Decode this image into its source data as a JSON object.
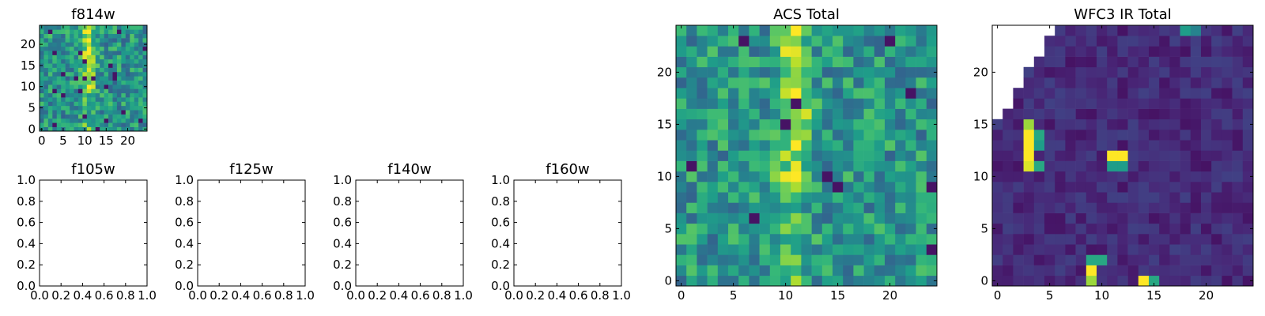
{
  "chart_data": [
    {
      "type": "heatmap",
      "title": "f814w",
      "grid_size": [
        25,
        25
      ],
      "xticks": [
        "0",
        "5",
        "10",
        "15",
        "20"
      ],
      "yticks": [
        "0",
        "5",
        "10",
        "15",
        "20"
      ],
      "xlim": [
        -0.5,
        24.5
      ],
      "ylim": [
        -0.5,
        24.5
      ],
      "colormap": "viridis",
      "pattern": "noisy field with a bright vertical band at x≈9-13"
    },
    {
      "type": "heatmap",
      "title": "f105w",
      "empty": true,
      "xticks": [
        "0.0",
        "0.2",
        "0.4",
        "0.6",
        "0.8",
        "1.0"
      ],
      "yticks": [
        "0.0",
        "0.2",
        "0.4",
        "0.6",
        "0.8",
        "1.0"
      ],
      "xlim": [
        0,
        1
      ],
      "ylim": [
        0,
        1
      ]
    },
    {
      "type": "heatmap",
      "title": "f125w",
      "empty": true,
      "xticks": [
        "0.0",
        "0.2",
        "0.4",
        "0.6",
        "0.8",
        "1.0"
      ],
      "yticks": [
        "0.0",
        "0.2",
        "0.4",
        "0.6",
        "0.8",
        "1.0"
      ],
      "xlim": [
        0,
        1
      ],
      "ylim": [
        0,
        1
      ]
    },
    {
      "type": "heatmap",
      "title": "f140w",
      "empty": true,
      "xticks": [
        "0.0",
        "0.2",
        "0.4",
        "0.6",
        "0.8",
        "1.0"
      ],
      "yticks": [
        "0.0",
        "0.2",
        "0.4",
        "0.6",
        "0.8",
        "1.0"
      ],
      "xlim": [
        0,
        1
      ],
      "ylim": [
        0,
        1
      ]
    },
    {
      "type": "heatmap",
      "title": "f160w",
      "empty": true,
      "xticks": [
        "0.0",
        "0.2",
        "0.4",
        "0.6",
        "0.8",
        "1.0"
      ],
      "yticks": [
        "0.0",
        "0.2",
        "0.4",
        "0.6",
        "0.8",
        "1.0"
      ],
      "xlim": [
        0,
        1
      ],
      "ylim": [
        0,
        1
      ]
    },
    {
      "type": "heatmap",
      "title": "ACS Total",
      "grid_size": [
        25,
        25
      ],
      "xticks": [
        "0",
        "5",
        "10",
        "15",
        "20"
      ],
      "yticks": [
        "0",
        "5",
        "10",
        "15",
        "20"
      ],
      "xlim": [
        -0.5,
        24.5
      ],
      "ylim": [
        -0.5,
        24.5
      ],
      "colormap": "viridis",
      "pattern": "noisy field with a bright vertical band at x≈9-13"
    },
    {
      "type": "heatmap",
      "title": "WFC3 IR Total",
      "grid_size": [
        25,
        25
      ],
      "xticks": [
        "0",
        "5",
        "10",
        "15",
        "20"
      ],
      "yticks": [
        "0",
        "5",
        "10",
        "15",
        "20"
      ],
      "xlim": [
        -0.5,
        24.5
      ],
      "ylim": [
        -0.5,
        24.5
      ],
      "colormap": "viridis",
      "pattern": "mostly dark field, blank (NaN) wedge in upper-left corner",
      "bright_pixels": [
        {
          "x": 3,
          "y": 14,
          "level": 1.0
        },
        {
          "x": 3,
          "y": 13,
          "level": 1.0
        },
        {
          "x": 3,
          "y": 12,
          "level": 1.0
        },
        {
          "x": 3,
          "y": 11,
          "level": 0.95
        },
        {
          "x": 4,
          "y": 14,
          "level": 0.6
        },
        {
          "x": 4,
          "y": 13,
          "level": 0.55
        },
        {
          "x": 4,
          "y": 11,
          "level": 0.6
        },
        {
          "x": 3,
          "y": 15,
          "level": 0.85
        },
        {
          "x": 11,
          "y": 12,
          "level": 1.0
        },
        {
          "x": 12,
          "y": 12,
          "level": 1.0
        },
        {
          "x": 11,
          "y": 11,
          "level": 0.55
        },
        {
          "x": 12,
          "y": 11,
          "level": 0.55
        },
        {
          "x": 9,
          "y": 1,
          "level": 1.0
        },
        {
          "x": 9,
          "y": 0,
          "level": 0.85
        },
        {
          "x": 9,
          "y": 2,
          "level": 0.6
        },
        {
          "x": 10,
          "y": 2,
          "level": 0.6
        },
        {
          "x": 14,
          "y": 0,
          "level": 1.0
        },
        {
          "x": 15,
          "y": 0,
          "level": 0.6
        },
        {
          "x": 18,
          "y": 24,
          "level": 0.55
        },
        {
          "x": 19,
          "y": 24,
          "level": 0.45
        }
      ]
    }
  ]
}
